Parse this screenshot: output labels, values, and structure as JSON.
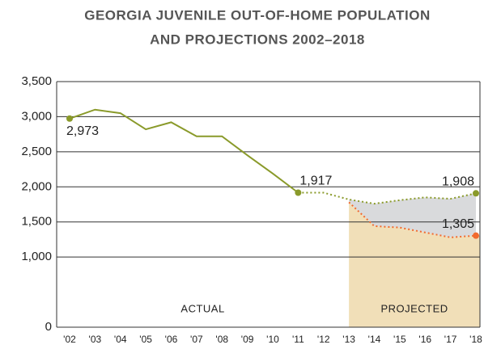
{
  "chart_data": {
    "type": "line",
    "title": "GEORGIA JUVENILE OUT-OF-HOME POPULATION",
    "subtitle": "AND PROJECTIONS 2002–2018",
    "categories": [
      "'02",
      "'03",
      "'04",
      "'05",
      "'06",
      "'07",
      "'08",
      "'09",
      "'10",
      "'11",
      "'12",
      "'13",
      "'14",
      "'15",
      "'16",
      "'17",
      "'18"
    ],
    "series": [
      {
        "color": "#8a9a2a",
        "dashed": false,
        "values": [
          2973,
          3100,
          3050,
          2820,
          2920,
          2720,
          2720,
          2450,
          2190,
          1917,
          null,
          null,
          null,
          null,
          null,
          null,
          null
        ],
        "value_labels": [
          "2,973",
          null,
          null,
          null,
          null,
          null,
          null,
          null,
          null,
          "1,917",
          null,
          null,
          null,
          null,
          null,
          null,
          null
        ]
      },
      {
        "color": "#8a9a2a",
        "dashed": true,
        "values": [
          null,
          null,
          null,
          null,
          null,
          null,
          null,
          null,
          null,
          1917,
          1917,
          1820,
          1760,
          1810,
          1850,
          1830,
          1908
        ],
        "value_labels": [
          null,
          null,
          null,
          null,
          null,
          null,
          null,
          null,
          null,
          null,
          null,
          null,
          null,
          null,
          null,
          null,
          "1,908"
        ]
      },
      {
        "color": "#f26a2e",
        "dashed": true,
        "values": [
          null,
          null,
          null,
          null,
          null,
          null,
          null,
          null,
          null,
          null,
          null,
          1780,
          1440,
          1420,
          1350,
          1280,
          1305
        ],
        "value_labels": [
          null,
          null,
          null,
          null,
          null,
          null,
          null,
          null,
          null,
          null,
          null,
          null,
          null,
          null,
          null,
          null,
          "1,305"
        ]
      }
    ],
    "annotations": [
      "ACTUAL",
      "PROJECTED"
    ],
    "projected_color": "#f1dfb8",
    "band_color": "#d9dadc",
    "ylim": [
      0,
      3500
    ],
    "yticks": [
      0,
      {
        "value": 1000,
        "label": "1,000"
      },
      {
        "value": 1500,
        "label": "1,500"
      },
      {
        "value": 2000,
        "label": "2,000"
      },
      {
        "value": 2500,
        "label": "2,500"
      },
      {
        "value": 3000,
        "label": "3,000"
      },
      {
        "value": 3500,
        "label": "3,500"
      }
    ],
    "grid": true
  }
}
